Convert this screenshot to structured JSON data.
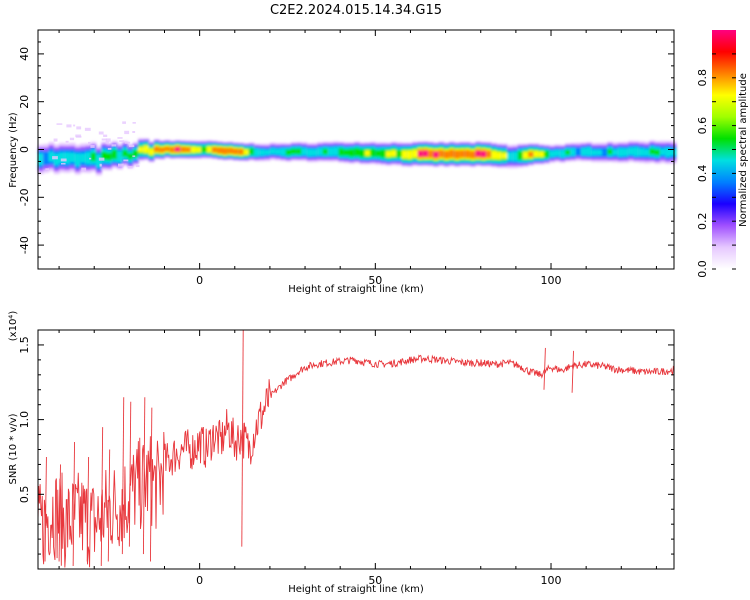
{
  "title": "C2E2.2024.015.14.34.G15",
  "chart_data": [
    {
      "type": "heatmap",
      "xlabel": "Height of straight line (km)",
      "ylabel": "Frequency (Hz)",
      "xlim": [
        -46,
        135
      ],
      "ylim": [
        -50,
        50
      ],
      "x_ticks": [
        0,
        50,
        100
      ],
      "y_ticks": [
        -40,
        -20,
        0,
        20,
        40
      ],
      "colorbar": {
        "label": "Normalized spectral amplitude",
        "range": [
          0,
          1
        ],
        "ticks": [
          0.0,
          0.2,
          0.4,
          0.6,
          0.8
        ],
        "tick_labels": [
          "0.0",
          "0.2",
          "0.4",
          "0.6",
          "0.8"
        ],
        "colors": [
          "#ffffff",
          "#e6c8ff",
          "#a050ff",
          "#1a00ff",
          "#0080ff",
          "#00e0e0",
          "#00e000",
          "#a0ff00",
          "#ffff00",
          "#ff8000",
          "#ff0000",
          "#ff0080"
        ]
      },
      "ridge_center_hz": [
        [
          -46,
          -3
        ],
        [
          -40,
          -4
        ],
        [
          -35,
          -4
        ],
        [
          -30,
          -4
        ],
        [
          -25,
          -3
        ],
        [
          -20,
          -2
        ],
        [
          -15,
          0
        ],
        [
          -10,
          0
        ],
        [
          -5,
          0
        ],
        [
          0,
          0
        ],
        [
          10,
          -1
        ],
        [
          20,
          -1
        ],
        [
          40,
          -1
        ],
        [
          60,
          -2
        ],
        [
          80,
          -2
        ],
        [
          88,
          -3
        ],
        [
          95,
          -2
        ],
        [
          110,
          -1
        ],
        [
          135,
          -1
        ]
      ],
      "ridge_halfwidth_hz": [
        [
          -46,
          5
        ],
        [
          -30,
          5
        ],
        [
          -20,
          4
        ],
        [
          -10,
          3
        ],
        [
          0,
          3
        ],
        [
          20,
          3
        ],
        [
          60,
          4
        ],
        [
          85,
          4
        ],
        [
          90,
          4
        ],
        [
          100,
          3
        ],
        [
          135,
          4
        ]
      ],
      "peak_amplitude": [
        [
          -46,
          0.45
        ],
        [
          -30,
          0.55
        ],
        [
          -20,
          0.6
        ],
        [
          -12,
          0.9
        ],
        [
          -5,
          0.95
        ],
        [
          0,
          0.7
        ],
        [
          5,
          0.95
        ],
        [
          11,
          0.95
        ],
        [
          15,
          0.5
        ],
        [
          30,
          0.55
        ],
        [
          50,
          0.65
        ],
        [
          58,
          0.75
        ],
        [
          62,
          0.95
        ],
        [
          82,
          0.95
        ],
        [
          88,
          0.5
        ],
        [
          94,
          0.9
        ],
        [
          100,
          0.5
        ],
        [
          135,
          0.5
        ]
      ]
    },
    {
      "type": "line",
      "xlabel": "Height of straight line (km)",
      "ylabel": "SNR (10 * v/v)",
      "y_multiplier": "(x10⁴)",
      "xlim": [
        -46,
        135
      ],
      "ylim": [
        0,
        1.6
      ],
      "x_ticks": [
        0,
        50,
        100
      ],
      "y_ticks": [
        0.5,
        1.0,
        1.5
      ],
      "y_tick_labels": [
        "0.5",
        "1.0",
        "1.5"
      ],
      "color": "#e8383d",
      "series": [
        {
          "name": "",
          "points": [
            [
              -46,
              0.25
            ],
            [
              -42,
              0.4
            ],
            [
              -38,
              0.3
            ],
            [
              -34,
              0.35
            ],
            [
              -30,
              0.3
            ],
            [
              -26,
              0.4
            ],
            [
              -22,
              0.45
            ],
            [
              -18,
              0.55
            ],
            [
              -14,
              0.6
            ],
            [
              -12,
              0.55
            ],
            [
              -10,
              0.7
            ],
            [
              -8,
              0.75
            ],
            [
              -5,
              0.8
            ],
            [
              -2,
              0.8
            ],
            [
              0,
              0.85
            ],
            [
              2,
              0.8
            ],
            [
              4,
              0.9
            ],
            [
              6,
              0.85
            ],
            [
              8,
              0.95
            ],
            [
              10,
              0.85
            ],
            [
              12,
              0.9
            ],
            [
              14,
              0.8
            ],
            [
              16,
              0.95
            ],
            [
              18,
              1.05
            ],
            [
              20,
              1.15
            ],
            [
              22,
              1.2
            ],
            [
              24,
              1.25
            ],
            [
              26,
              1.28
            ],
            [
              28,
              1.32
            ],
            [
              30,
              1.35
            ],
            [
              33,
              1.37
            ],
            [
              36,
              1.38
            ],
            [
              40,
              1.39
            ],
            [
              44,
              1.4
            ],
            [
              48,
              1.38
            ],
            [
              52,
              1.37
            ],
            [
              56,
              1.38
            ],
            [
              60,
              1.4
            ],
            [
              64,
              1.41
            ],
            [
              68,
              1.4
            ],
            [
              72,
              1.39
            ],
            [
              76,
              1.38
            ],
            [
              80,
              1.38
            ],
            [
              84,
              1.37
            ],
            [
              88,
              1.38
            ],
            [
              91,
              1.36
            ],
            [
              94,
              1.32
            ],
            [
              97,
              1.3
            ],
            [
              100,
              1.35
            ],
            [
              103,
              1.33
            ],
            [
              106,
              1.36
            ],
            [
              110,
              1.37
            ],
            [
              114,
              1.36
            ],
            [
              118,
              1.34
            ],
            [
              122,
              1.33
            ],
            [
              126,
              1.32
            ],
            [
              130,
              1.32
            ],
            [
              135,
              1.33
            ]
          ],
          "spikes": [
            [
              -44,
              0.05,
              0.75
            ],
            [
              -40,
              0.05,
              0.7
            ],
            [
              -36,
              0.02,
              0.85
            ],
            [
              -32,
              0.05,
              0.75
            ],
            [
              -28,
              0.02,
              0.95
            ],
            [
              -26,
              0.05,
              0.8
            ],
            [
              -22,
              0.1,
              1.15
            ],
            [
              -20,
              0.15,
              1.12
            ],
            [
              -16,
              0.1,
              1.15
            ],
            [
              -14,
              0.05,
              1.08
            ],
            [
              12,
              0.15,
              1.6
            ],
            [
              98,
              1.2,
              1.48
            ],
            [
              106,
              1.18,
              1.46
            ]
          ]
        }
      ]
    }
  ]
}
